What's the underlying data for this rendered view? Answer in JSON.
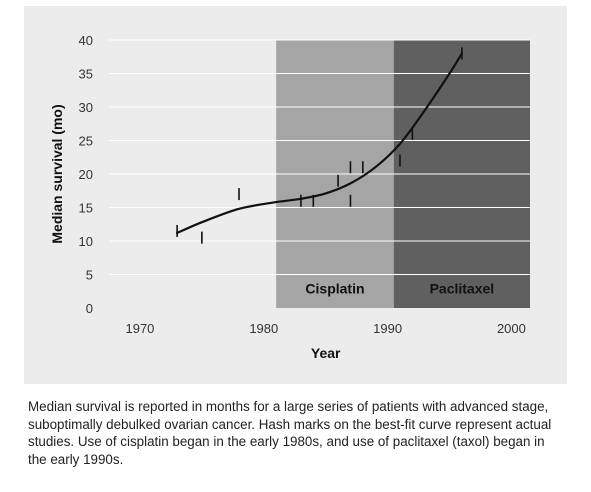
{
  "chart_data": {
    "type": "line",
    "title": "",
    "xlabel": "Year",
    "ylabel": "Median survival (mo)",
    "xlim": [
      1965,
      2005
    ],
    "ylim": [
      0,
      40
    ],
    "x_ticks": [
      1970,
      1980,
      1990,
      2000
    ],
    "y_ticks": [
      0,
      5,
      10,
      15,
      20,
      25,
      30,
      35,
      40
    ],
    "grid": "horizontal",
    "bands": [
      {
        "label": "Cisplatin",
        "x_start": 1981,
        "x_end": 1990.5,
        "color": "#a5a5a5"
      },
      {
        "label": "Paclitaxel",
        "x_start": 1990.5,
        "x_end": 2004,
        "color": "#606060"
      }
    ],
    "series": [
      {
        "x": [
          1973,
          1975,
          1978,
          1981,
          1983,
          1985,
          1987,
          1989,
          1991,
          1993,
          1995,
          1996
        ],
        "y": [
          11.2,
          12.8,
          14.8,
          15.8,
          16.3,
          17.1,
          18.6,
          21.0,
          24.5,
          29.5,
          35.0,
          38.0
        ]
      }
    ],
    "study_marks": [
      {
        "x": 1973,
        "y": 11.5
      },
      {
        "x": 1975,
        "y": 10.5
      },
      {
        "x": 1978,
        "y": 17.0
      },
      {
        "x": 1983,
        "y": 16.0
      },
      {
        "x": 1984,
        "y": 16.0
      },
      {
        "x": 1986,
        "y": 19.0
      },
      {
        "x": 1987,
        "y": 21.0
      },
      {
        "x": 1987,
        "y": 16.0
      },
      {
        "x": 1988,
        "y": 21.0
      },
      {
        "x": 1991,
        "y": 22.0
      },
      {
        "x": 1992,
        "y": 26.0
      },
      {
        "x": 1996,
        "y": 38.0
      }
    ]
  },
  "caption": "Median survival is reported in months for a large series of patients with advanced stage, suboptimally debulked ovarian cancer. Hash marks on the best-fit curve represent actual studies. Use of cisplatin began in the early 1980s, and use of paclitaxel (taxol) began in the early 1990s.",
  "colors": {
    "panel_background": "#ececec",
    "gridline": "#ffffff",
    "curve": "#111111",
    "hash_mark": "#111111"
  }
}
